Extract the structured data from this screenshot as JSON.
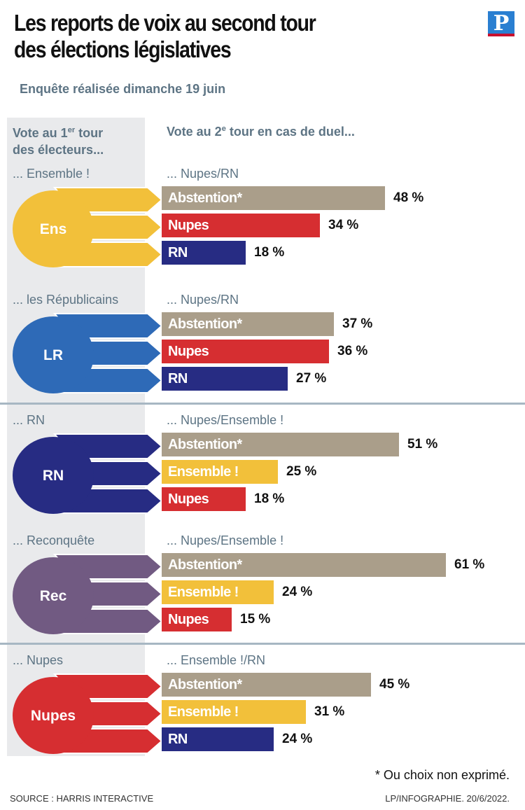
{
  "header": {
    "title_line1": "Les reports de voix au second tour",
    "title_line2": "des élections législatives",
    "subtitle": "Enquête réalisée dimanche 19 juin",
    "logo": "P"
  },
  "columns": {
    "left_line1_a": "Vote au 1",
    "left_line1_sup": "er",
    "left_line1_b": " tour",
    "left_line2": "des électeurs...",
    "right_a": "Vote au 2",
    "right_sup": "e",
    "right_b": " tour en cas de duel..."
  },
  "colors": {
    "Abstention*": "#aa9e8a",
    "Nupes": "#d62e31",
    "RN": "#272c83",
    "Ensemble !": "#f2c03a",
    "Ens_shape": "#f2c03a",
    "LR_shape": "#2e6ab7",
    "RN_shape": "#272c83",
    "Rec_shape": "#715a82",
    "Nupes_shape": "#d62e31"
  },
  "chart_data": {
    "type": "bar",
    "groups": [
      {
        "party": "... Ensemble !",
        "badge": "Ens",
        "duel": "... Nupes/RN",
        "bars": [
          {
            "label": "Abstention*",
            "value": 48,
            "value_label": "48 %"
          },
          {
            "label": "Nupes",
            "value": 34,
            "value_label": "34 %"
          },
          {
            "label": "RN",
            "value": 18,
            "value_label": "18 %"
          }
        ]
      },
      {
        "party": "... les Républicains",
        "badge": "LR",
        "duel": "... Nupes/RN",
        "bars": [
          {
            "label": "Abstention*",
            "value": 37,
            "value_label": "37 %"
          },
          {
            "label": "Nupes",
            "value": 36,
            "value_label": "36 %"
          },
          {
            "label": "RN",
            "value": 27,
            "value_label": "27 %"
          }
        ]
      },
      {
        "party": "... RN",
        "badge": "RN",
        "duel": "... Nupes/Ensemble !",
        "bars": [
          {
            "label": "Abstention*",
            "value": 51,
            "value_label": "51 %"
          },
          {
            "label": "Ensemble !",
            "value": 25,
            "value_label": "25 %"
          },
          {
            "label": "Nupes",
            "value": 18,
            "value_label": "18 %"
          }
        ]
      },
      {
        "party": "... Reconquête",
        "badge": "Rec",
        "duel": "... Nupes/Ensemble !",
        "bars": [
          {
            "label": "Abstention*",
            "value": 61,
            "value_label": "61 %"
          },
          {
            "label": "Ensemble !",
            "value": 24,
            "value_label": "24 %"
          },
          {
            "label": "Nupes",
            "value": 15,
            "value_label": "15 %"
          }
        ]
      },
      {
        "party": "... Nupes",
        "badge": "Nupes",
        "duel": "... Ensemble !/RN",
        "bars": [
          {
            "label": "Abstention*",
            "value": 45,
            "value_label": "45 %"
          },
          {
            "label": "Ensemble !",
            "value": 31,
            "value_label": "31 %"
          },
          {
            "label": "RN",
            "value": 24,
            "value_label": "24 %"
          }
        ]
      }
    ]
  },
  "footer": {
    "footnote": "* Ou choix non exprimé.",
    "source": "SOURCE : HARRIS INTERACTIVE",
    "credit": "LP/INFOGRAPHIE.  20/6/2022."
  }
}
